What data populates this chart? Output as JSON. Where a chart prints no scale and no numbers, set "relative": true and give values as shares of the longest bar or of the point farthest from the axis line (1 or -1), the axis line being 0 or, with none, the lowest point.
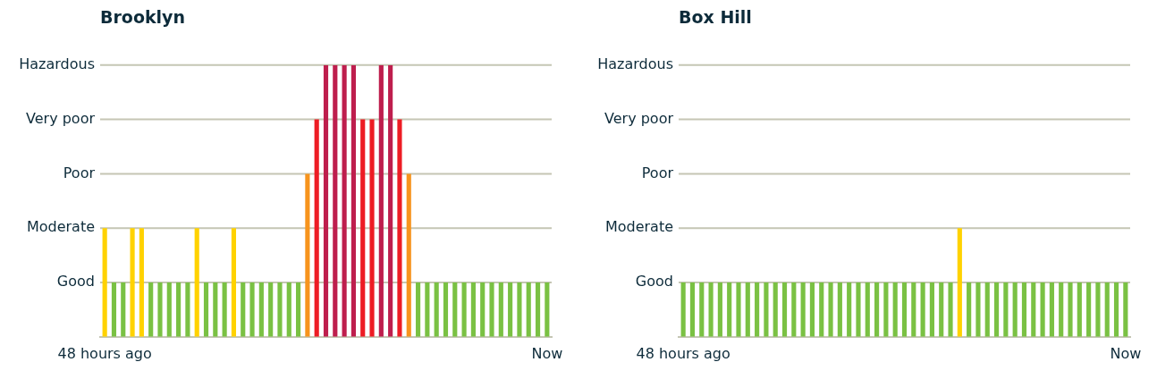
{
  "chart_data": [
    {
      "type": "bar",
      "title": "Brooklyn",
      "relative": true,
      "categories": [
        "48 hours ago",
        null,
        null,
        null,
        null,
        null,
        null,
        null,
        null,
        null,
        null,
        null,
        null,
        null,
        null,
        null,
        null,
        null,
        null,
        null,
        null,
        null,
        null,
        null,
        null,
        null,
        null,
        null,
        null,
        null,
        null,
        null,
        null,
        null,
        null,
        null,
        null,
        null,
        null,
        null,
        null,
        null,
        null,
        null,
        null,
        null,
        null,
        null,
        "Now"
      ],
      "values": [
        0.4,
        0.2,
        0.2,
        0.4,
        0.4,
        0.2,
        0.2,
        0.2,
        0.2,
        0.2,
        0.4,
        0.2,
        0.2,
        0.2,
        0.4,
        0.2,
        0.2,
        0.2,
        0.2,
        0.2,
        0.2,
        0.2,
        0.6,
        0.8,
        1,
        1,
        1,
        1,
        0.8,
        0.8,
        1,
        1,
        0.8,
        0.6,
        0.2,
        0.2,
        0.2,
        0.2,
        0.2,
        0.2,
        0.2,
        0.2,
        0.2,
        0.2,
        0.2,
        0.2,
        0.2,
        0.2,
        0.2
      ],
      "colors": [
        "#ffd200",
        "#7ac143",
        "#7ac143",
        "#ffd200",
        "#ffd200",
        "#7ac143",
        "#7ac143",
        "#7ac143",
        "#7ac143",
        "#7ac143",
        "#ffd200",
        "#7ac143",
        "#7ac143",
        "#7ac143",
        "#ffd200",
        "#7ac143",
        "#7ac143",
        "#7ac143",
        "#7ac143",
        "#7ac143",
        "#7ac143",
        "#7ac143",
        "#f7941d",
        "#ed1c24",
        "#be1e4d",
        "#be1e4d",
        "#be1e4d",
        "#be1e4d",
        "#ed1c24",
        "#ed1c24",
        "#be1e4d",
        "#be1e4d",
        "#ed1c24",
        "#f7941d",
        "#7ac143",
        "#7ac143",
        "#7ac143",
        "#7ac143",
        "#7ac143",
        "#7ac143",
        "#7ac143",
        "#7ac143",
        "#7ac143",
        "#7ac143",
        "#7ac143",
        "#7ac143",
        "#7ac143",
        "#7ac143",
        "#7ac143"
      ],
      "ref_lines": [
        {
          "axis": "y",
          "value": 0.2,
          "label": "Good",
          "color": "#c5c6b4"
        },
        {
          "axis": "y",
          "value": 0.4,
          "label": "Moderate",
          "color": "#c5c6b4"
        },
        {
          "axis": "y",
          "value": 0.6,
          "label": "Poor",
          "color": "#c5c6b4"
        },
        {
          "axis": "y",
          "value": 0.8,
          "label": "Very poor",
          "color": "#c5c6b4"
        },
        {
          "axis": "y",
          "value": 1,
          "label": "Hazardous",
          "color": "#c5c6b4"
        }
      ]
    },
    {
      "type": "bar",
      "title": "Box Hill",
      "relative": true,
      "categories": [
        "48 hours ago",
        null,
        null,
        null,
        null,
        null,
        null,
        null,
        null,
        null,
        null,
        null,
        null,
        null,
        null,
        null,
        null,
        null,
        null,
        null,
        null,
        null,
        null,
        null,
        null,
        null,
        null,
        null,
        null,
        null,
        null,
        null,
        null,
        null,
        null,
        null,
        null,
        null,
        null,
        null,
        null,
        null,
        null,
        null,
        null,
        null,
        null,
        null,
        "Now"
      ],
      "values": [
        0.5,
        0.5,
        0.5,
        0.5,
        0.5,
        0.5,
        0.5,
        0.5,
        0.5,
        0.5,
        0.5,
        0.5,
        0.5,
        0.5,
        0.5,
        0.5,
        0.5,
        0.5,
        0.5,
        0.5,
        0.5,
        0.5,
        0.5,
        0.5,
        0.5,
        0.5,
        0.5,
        0.5,
        0.5,
        0.5,
        1,
        0.5,
        0.5,
        0.5,
        0.5,
        0.5,
        0.5,
        0.5,
        0.5,
        0.5,
        0.5,
        0.5,
        0.5,
        0.5,
        0.5,
        0.5,
        0.5,
        0.5,
        0.5
      ],
      "colors": [
        "#7ac143",
        "#7ac143",
        "#7ac143",
        "#7ac143",
        "#7ac143",
        "#7ac143",
        "#7ac143",
        "#7ac143",
        "#7ac143",
        "#7ac143",
        "#7ac143",
        "#7ac143",
        "#7ac143",
        "#7ac143",
        "#7ac143",
        "#7ac143",
        "#7ac143",
        "#7ac143",
        "#7ac143",
        "#7ac143",
        "#7ac143",
        "#7ac143",
        "#7ac143",
        "#7ac143",
        "#7ac143",
        "#7ac143",
        "#7ac143",
        "#7ac143",
        "#7ac143",
        "#7ac143",
        "#ffd200",
        "#7ac143",
        "#7ac143",
        "#7ac143",
        "#7ac143",
        "#7ac143",
        "#7ac143",
        "#7ac143",
        "#7ac143",
        "#7ac143",
        "#7ac143",
        "#7ac143",
        "#7ac143",
        "#7ac143",
        "#7ac143",
        "#7ac143",
        "#7ac143",
        "#7ac143",
        "#7ac143"
      ],
      "ref_lines": [
        {
          "axis": "y",
          "value": 0.5,
          "label": "Good",
          "color": "#c5c6b4"
        },
        {
          "axis": "y",
          "value": 1,
          "label": "Moderate",
          "color": "#c5c6b4"
        },
        {
          "axis": "y",
          "value": 1.5,
          "label": "Poor",
          "color": "#c5c6b4"
        },
        {
          "axis": "y",
          "value": 2,
          "label": "Very poor",
          "color": "#c5c6b4"
        },
        {
          "axis": "y",
          "value": 2.5,
          "label": "Hazardous",
          "color": "#c5c6b4"
        }
      ]
    }
  ]
}
